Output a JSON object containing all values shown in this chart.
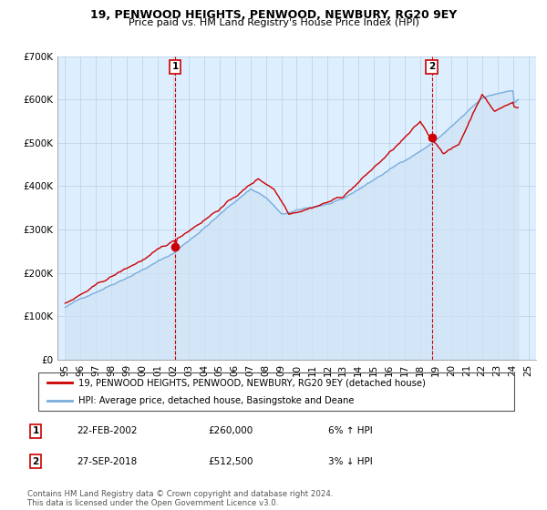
{
  "title": "19, PENWOOD HEIGHTS, PENWOOD, NEWBURY, RG20 9EY",
  "subtitle": "Price paid vs. HM Land Registry's House Price Index (HPI)",
  "legend_line1": "19, PENWOOD HEIGHTS, PENWOOD, NEWBURY, RG20 9EY (detached house)",
  "legend_line2": "HPI: Average price, detached house, Basingstoke and Deane",
  "footnote": "Contains HM Land Registry data © Crown copyright and database right 2024.\nThis data is licensed under the Open Government Licence v3.0.",
  "table": [
    {
      "num": "1",
      "date": "22-FEB-2002",
      "price": "£260,000",
      "hpi": "6% ↑ HPI"
    },
    {
      "num": "2",
      "date": "27-SEP-2018",
      "price": "£512,500",
      "hpi": "3% ↓ HPI"
    }
  ],
  "red_color": "#cc0000",
  "blue_color": "#7aacdc",
  "blue_fill_color": "#d0e4f5",
  "marker1_x": 2002.13,
  "marker1_y": 260000,
  "marker2_x": 2018.74,
  "marker2_y": 512500,
  "vline1_x": 2002.13,
  "vline2_x": 2018.74,
  "ylim": [
    0,
    700000
  ],
  "yticks": [
    0,
    100000,
    200000,
    300000,
    400000,
    500000,
    600000,
    700000
  ],
  "ytick_labels": [
    "£0",
    "£100K",
    "£200K",
    "£300K",
    "£400K",
    "£500K",
    "£600K",
    "£700K"
  ],
  "xtick_years": [
    1995,
    1996,
    1997,
    1998,
    1999,
    2000,
    2001,
    2002,
    2003,
    2004,
    2005,
    2006,
    2007,
    2008,
    2009,
    2010,
    2011,
    2012,
    2013,
    2014,
    2015,
    2016,
    2017,
    2018,
    2019,
    2020,
    2021,
    2022,
    2023,
    2024,
    2025
  ],
  "xlim": [
    1994.5,
    2025.5
  ],
  "background_color": "#ffffff",
  "grid_color": "#b8cfe0",
  "plot_bg_color": "#ddeeff"
}
